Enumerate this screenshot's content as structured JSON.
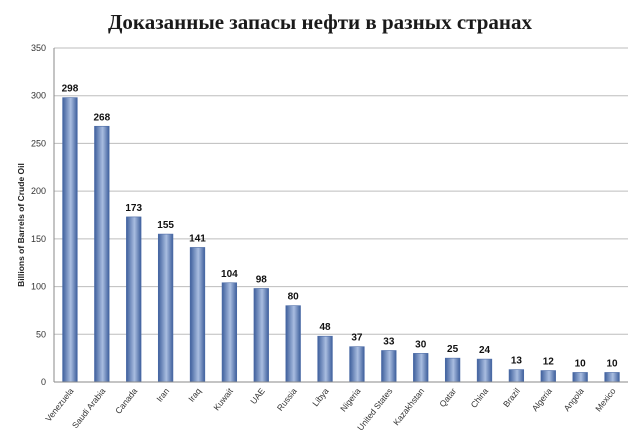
{
  "chart_data": {
    "type": "bar",
    "title": "Доказанные запасы нефти в разных странах",
    "ylabel": "Billions of Barrels of Crude Oil",
    "xlabel": "",
    "ylim": [
      0,
      350
    ],
    "yticks": [
      0,
      50,
      100,
      150,
      200,
      250,
      300,
      350
    ],
    "grid": true,
    "categories": [
      "Venezuela",
      "Saudi Arabia",
      "Canada",
      "Iran",
      "Iraq",
      "Kuwait",
      "UAE",
      "Russia",
      "Libya",
      "Nigeria",
      "United States",
      "Kazakhstan",
      "Qatar",
      "China",
      "Brazil",
      "Algeria",
      "Angola",
      "Mexico"
    ],
    "values": [
      298,
      268,
      173,
      155,
      141,
      104,
      98,
      80,
      48,
      37,
      33,
      30,
      25,
      24,
      13,
      12,
      10,
      10
    ],
    "colors": {
      "bar_light": "#a9bde0",
      "bar_dark": "#3e5f9c",
      "bar_edge": "#4a6aa6"
    }
  }
}
